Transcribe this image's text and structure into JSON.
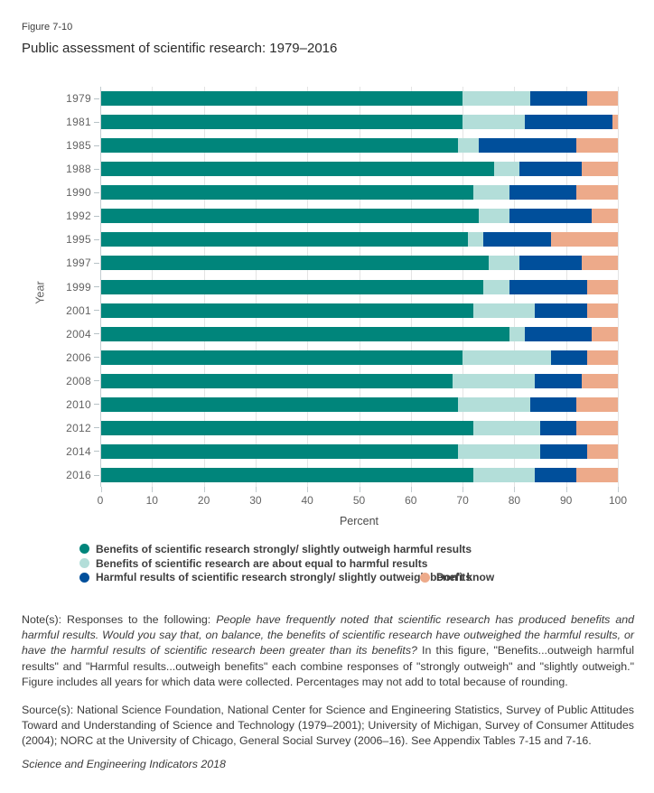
{
  "figure_label": "Figure 7-10",
  "title": "Public assessment of scientific research: 1979–2016",
  "chart_data": {
    "type": "bar",
    "orientation": "horizontal",
    "stacked": true,
    "title": "Public assessment of scientific research: 1979–2016",
    "xlabel": "Percent",
    "ylabel": "Year",
    "xlim": [
      0,
      100
    ],
    "xticks": [
      0,
      10,
      20,
      30,
      40,
      50,
      60,
      70,
      80,
      90,
      100
    ],
    "grid": true,
    "categories": [
      "1979",
      "1981",
      "1985",
      "1988",
      "1990",
      "1992",
      "1995",
      "1997",
      "1999",
      "2001",
      "2004",
      "2006",
      "2008",
      "2010",
      "2012",
      "2014",
      "2016"
    ],
    "series": [
      {
        "name": "Benefits of scientific research strongly/ slightly outweigh harmful results",
        "color": "#00857b",
        "values": [
          70,
          70,
          69,
          76,
          72,
          73,
          71,
          75,
          74,
          72,
          79,
          70,
          68,
          69,
          72,
          69,
          72
        ]
      },
      {
        "name": "Benefits of scientific research are about equal to harmful results",
        "color": "#b3ded9",
        "values": [
          13,
          12,
          4,
          5,
          7,
          6,
          3,
          6,
          5,
          12,
          3,
          17,
          16,
          14,
          13,
          16,
          12
        ]
      },
      {
        "name": "Harmful results of scientific research strongly/ slightly outweigh benefits",
        "color": "#004f9b",
        "values": [
          11,
          17,
          19,
          12,
          13,
          16,
          13,
          12,
          15,
          10,
          13,
          7,
          9,
          9,
          7,
          9,
          8
        ]
      },
      {
        "name": "Don't know",
        "color": "#edaa8a",
        "values": [
          6,
          1,
          8,
          7,
          8,
          5,
          13,
          7,
          6,
          6,
          5,
          6,
          7,
          8,
          8,
          6,
          8
        ]
      }
    ]
  },
  "axes": {
    "x_title": "Percent",
    "y_title": "Year"
  },
  "legend": {
    "items": [
      {
        "label": "Benefits of scientific research strongly/ slightly outweigh harmful results",
        "color": "#00857b"
      },
      {
        "label": "Benefits of scientific research are about equal to harmful results",
        "color": "#b3ded9"
      },
      {
        "label": "Harmful results of scientific research strongly/ slightly outweigh benefits",
        "color": "#004f9b"
      },
      {
        "label": "Don't know",
        "color": "#edaa8a"
      }
    ]
  },
  "notes": {
    "parts": [
      {
        "text": "Note(s): Responses to the following:  ",
        "italic": false
      },
      {
        "text": "People have frequently noted that scientific research has produced benefits and harmful results. Would you say that, on balance, the benefits of scientific research have outweighed the harmful results, or have the harmful results of scientific research been greater than its benefits?",
        "italic": true
      },
      {
        "text": "  In this figure, \"Benefits...outweigh harmful results\" and \"Harmful results...outweigh benefits\" each combine responses of \"strongly outweigh\" and \"slightly outweigh.\" Figure includes all years for which data were collected. Percentages may not add to total because of rounding.",
        "italic": false
      }
    ]
  },
  "source": {
    "text": "Source(s): National Science Foundation, National Center for Science and Engineering Statistics, Survey of Public Attitudes Toward and Understanding of Science and Technology (1979–2001); University of Michigan, Survey of Consumer Attitudes (2004); NORC at the University of Chicago, General Social Survey (2006–16). See Appendix Tables 7-15 and 7-16.",
    "footer": "Science and Engineering Indicators 2018"
  }
}
